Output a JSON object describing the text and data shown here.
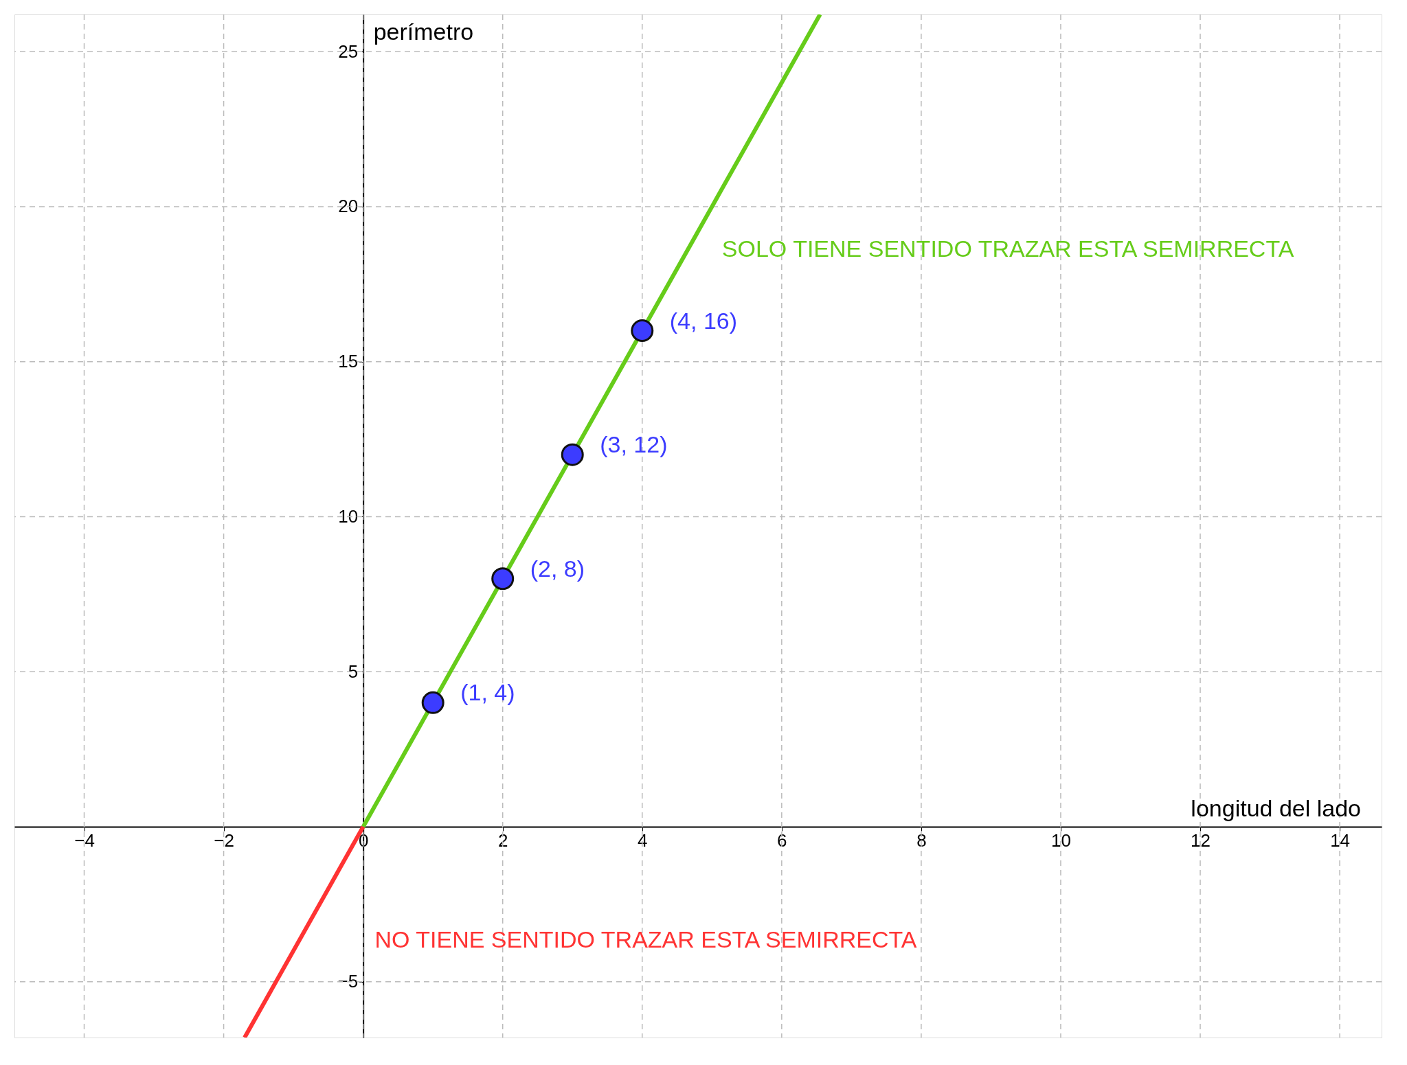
{
  "chart_data": {
    "type": "line",
    "xlabel": "longitud del lado",
    "ylabel": "perímetro",
    "xlim": [
      -5,
      14.6
    ],
    "ylim": [
      -6.8,
      26.2
    ],
    "xticks": [
      {
        "value": -4,
        "label": "−4"
      },
      {
        "value": -2,
        "label": "−2"
      },
      0,
      2,
      4,
      6,
      8,
      10,
      12,
      14
    ],
    "yticks": [
      {
        "value": -5,
        "label": "−5"
      },
      5,
      10,
      15,
      20,
      25
    ],
    "grid": true,
    "series": [
      {
        "color": "#66cc1a",
        "x": [
          0,
          6.55
        ],
        "values": [
          0,
          26.2
        ]
      },
      {
        "color": "#ff3333",
        "x": [
          0,
          -1.7
        ],
        "values": [
          0,
          -6.8
        ]
      },
      {
        "type": "scatter",
        "marker": "circle",
        "color": "#3c3cff",
        "x": [
          1,
          2,
          3,
          4
        ],
        "values": [
          4,
          8,
          12,
          16
        ],
        "value_labels": [
          "(1, 4)",
          "(2, 8)",
          "(3, 12)",
          "(4, 16)"
        ]
      }
    ],
    "annotations": [
      "SOLO TIENE SENTIDO TRAZAR ESTA SEMIRRECTA",
      "NO TIENE SENTIDO TRAZAR ESTA SEMIRRECTA"
    ]
  }
}
